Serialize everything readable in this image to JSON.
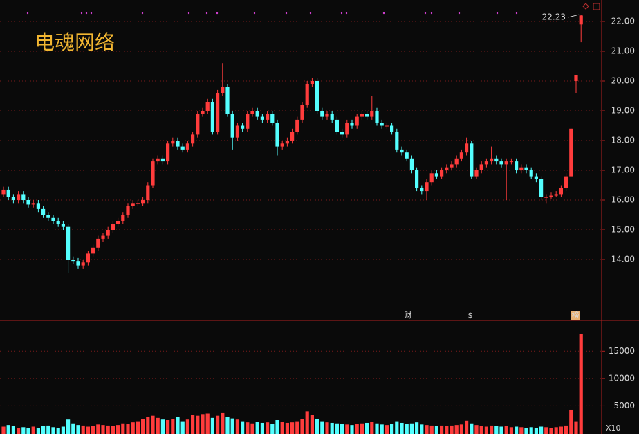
{
  "chart_data": {
    "type": "candlestick",
    "title": "电魂网络",
    "open": [
      16.2,
      16.35,
      16.1,
      16.0,
      16.2,
      16.0,
      15.85,
      15.9,
      15.7,
      15.5,
      15.4,
      15.3,
      15.2,
      15.1,
      14.0,
      13.95,
      13.8,
      13.9,
      14.2,
      14.4,
      14.7,
      14.8,
      15.0,
      15.2,
      15.3,
      15.5,
      15.8,
      15.9,
      15.9,
      16.0,
      16.5,
      17.3,
      17.4,
      17.3,
      17.9,
      18.0,
      17.8,
      17.7,
      17.9,
      18.2,
      18.9,
      19.0,
      19.3,
      18.3,
      19.6,
      19.8,
      18.9,
      18.1,
      18.5,
      18.4,
      18.9,
      19.0,
      18.8,
      18.7,
      18.9,
      18.6,
      17.8,
      17.9,
      18.0,
      18.3,
      18.7,
      19.2,
      19.9,
      20.0,
      19.0,
      18.8,
      18.9,
      18.7,
      18.3,
      18.2,
      18.6,
      18.5,
      18.8,
      18.9,
      18.8,
      19.0,
      18.6,
      18.5,
      18.5,
      18.3,
      17.7,
      17.6,
      17.4,
      17.0,
      16.4,
      16.3,
      16.6,
      16.9,
      16.8,
      17.0,
      17.1,
      17.2,
      17.4,
      17.6,
      17.9,
      16.8,
      17.0,
      17.2,
      17.3,
      17.4,
      17.3,
      17.2,
      17.3,
      17.3,
      17.0,
      17.1,
      17.0,
      16.8,
      16.7,
      16.1,
      16.1,
      16.15,
      16.2,
      16.4,
      16.8,
      20.0,
      21.9
    ],
    "high": [
      16.45,
      16.45,
      16.2,
      16.3,
      16.3,
      16.1,
      16.0,
      16.0,
      15.8,
      15.6,
      15.5,
      15.4,
      15.3,
      15.2,
      14.1,
      14.05,
      14.0,
      14.3,
      14.5,
      14.8,
      14.9,
      15.1,
      15.3,
      15.4,
      15.6,
      15.9,
      16.0,
      16.0,
      16.1,
      16.6,
      17.4,
      17.5,
      17.5,
      18.0,
      18.1,
      18.1,
      17.9,
      18.0,
      18.3,
      19.0,
      19.1,
      19.4,
      19.4,
      19.7,
      20.6,
      19.9,
      19.0,
      18.6,
      18.6,
      19.0,
      19.1,
      19.1,
      18.9,
      19.0,
      19.0,
      18.7,
      18.0,
      18.1,
      18.4,
      18.8,
      19.3,
      20.0,
      20.1,
      20.1,
      19.1,
      19.0,
      19.0,
      18.8,
      18.4,
      18.7,
      18.7,
      18.9,
      19.0,
      19.0,
      19.5,
      19.1,
      18.7,
      18.6,
      18.6,
      18.4,
      17.8,
      17.7,
      17.5,
      17.1,
      16.5,
      16.7,
      17.0,
      17.0,
      17.1,
      17.2,
      17.3,
      17.5,
      17.7,
      18.1,
      18.0,
      17.1,
      17.3,
      17.4,
      17.8,
      17.5,
      17.4,
      17.4,
      17.4,
      17.4,
      17.2,
      17.2,
      17.1,
      16.9,
      16.8,
      16.2,
      16.25,
      16.3,
      16.5,
      16.9,
      18.4,
      20.2,
      22.23
    ],
    "low": [
      16.1,
      16.0,
      15.9,
      15.9,
      15.9,
      15.75,
      15.75,
      15.6,
      15.4,
      15.3,
      15.2,
      15.1,
      15.0,
      13.55,
      13.85,
      13.7,
      13.7,
      13.8,
      14.1,
      14.3,
      14.6,
      14.7,
      14.9,
      15.1,
      15.2,
      15.4,
      15.7,
      15.8,
      15.8,
      15.9,
      16.4,
      17.2,
      17.2,
      17.2,
      17.8,
      17.7,
      17.6,
      17.6,
      17.8,
      18.1,
      18.8,
      18.9,
      18.2,
      18.2,
      19.5,
      18.8,
      17.7,
      18.0,
      18.3,
      18.3,
      18.8,
      18.7,
      18.6,
      18.6,
      18.5,
      17.5,
      17.7,
      17.8,
      17.9,
      18.2,
      18.6,
      19.1,
      19.8,
      18.9,
      18.7,
      18.7,
      18.6,
      18.2,
      18.1,
      18.1,
      18.4,
      18.4,
      18.7,
      18.7,
      18.7,
      18.5,
      18.4,
      18.4,
      18.2,
      17.6,
      17.5,
      17.3,
      16.9,
      16.3,
      16.2,
      16.0,
      16.5,
      16.7,
      16.7,
      16.9,
      17.0,
      17.1,
      17.3,
      17.5,
      16.7,
      16.7,
      16.9,
      17.1,
      17.2,
      17.2,
      17.1,
      16.0,
      17.2,
      16.9,
      16.9,
      16.9,
      16.7,
      16.6,
      16.0,
      15.9,
      16.05,
      16.1,
      16.1,
      16.3,
      16.8,
      19.6,
      21.3
    ],
    "close": [
      16.35,
      16.1,
      16.0,
      16.2,
      16.0,
      15.85,
      15.9,
      15.7,
      15.5,
      15.4,
      15.3,
      15.2,
      15.1,
      14.0,
      13.95,
      13.8,
      13.9,
      14.2,
      14.4,
      14.7,
      14.8,
      15.0,
      15.2,
      15.3,
      15.5,
      15.8,
      15.9,
      15.9,
      16.0,
      16.5,
      17.3,
      17.4,
      17.3,
      17.9,
      18.0,
      17.8,
      17.7,
      17.9,
      18.2,
      18.9,
      19.0,
      19.3,
      18.3,
      19.6,
      19.8,
      18.9,
      18.1,
      18.5,
      18.4,
      18.9,
      19.0,
      18.8,
      18.7,
      18.9,
      18.6,
      17.8,
      17.9,
      18.0,
      18.3,
      18.7,
      19.2,
      19.9,
      20.0,
      19.0,
      18.8,
      18.9,
      18.7,
      18.3,
      18.2,
      18.6,
      18.5,
      18.8,
      18.9,
      18.8,
      19.0,
      18.6,
      18.5,
      18.5,
      18.3,
      17.7,
      17.6,
      17.4,
      17.0,
      16.4,
      16.3,
      16.6,
      16.9,
      16.8,
      17.0,
      17.1,
      17.2,
      17.4,
      17.6,
      17.9,
      16.8,
      17.0,
      17.2,
      17.3,
      17.4,
      17.3,
      17.2,
      17.3,
      17.3,
      17.0,
      17.1,
      17.0,
      16.8,
      16.7,
      16.1,
      16.1,
      16.15,
      16.2,
      16.4,
      16.8,
      18.4,
      20.2,
      22.2
    ],
    "volume": [
      1200,
      1500,
      1300,
      1000,
      1100,
      900,
      1200,
      1000,
      1300,
      1400,
      1100,
      900,
      1200,
      2500,
      1800,
      1500,
      1400,
      1200,
      1300,
      1600,
      1500,
      1400,
      1300,
      1500,
      1800,
      1700,
      2000,
      2200,
      2600,
      3000,
      3200,
      2800,
      2500,
      2400,
      2600,
      3000,
      2200,
      2500,
      3300,
      3200,
      3500,
      3600,
      2800,
      3200,
      3800,
      3000,
      2700,
      2500,
      2200,
      2000,
      1800,
      2100,
      1900,
      2000,
      1700,
      2400,
      2100,
      1900,
      2000,
      2200,
      2600,
      4000,
      3300,
      2600,
      2200,
      2000,
      1900,
      1800,
      1700,
      1600,
      1500,
      1700,
      1800,
      1900,
      2100,
      1800,
      1600,
      1500,
      1700,
      2200,
      1900,
      1700,
      1800,
      2000,
      1600,
      1500,
      1400,
      1300,
      1400,
      1300,
      1400,
      1500,
      1600,
      2300,
      1800,
      1500,
      1300,
      1200,
      1400,
      1300,
      1200,
      1300,
      1100,
      1200,
      1100,
      1000,
      1100,
      1000,
      1200,
      1100,
      1000,
      1100,
      1200,
      1400,
      4300,
      2200,
      18200
    ],
    "up_color": "#ff3c3c",
    "down_color": "#54ffff",
    "ylim": [
      12,
      22.5
    ],
    "yticks": [
      {
        "value": 14,
        "label": "14.00"
      },
      {
        "value": 15,
        "label": "15.00"
      },
      {
        "value": 16,
        "label": "16.00"
      },
      {
        "value": 17,
        "label": "17.00"
      },
      {
        "value": 18,
        "label": "18.00"
      },
      {
        "value": 19,
        "label": "19.00"
      },
      {
        "value": 20,
        "label": "20.00"
      },
      {
        "value": 21,
        "label": "21.00"
      },
      {
        "value": 22,
        "label": "22.00"
      }
    ],
    "volume_ylim": [
      0,
      20600
    ],
    "volume_yticks": [
      5000,
      10000,
      15000
    ],
    "volume_unit": "X10",
    "annotations": [
      "财",
      "$",
      "榜"
    ],
    "grid": true
  }
}
